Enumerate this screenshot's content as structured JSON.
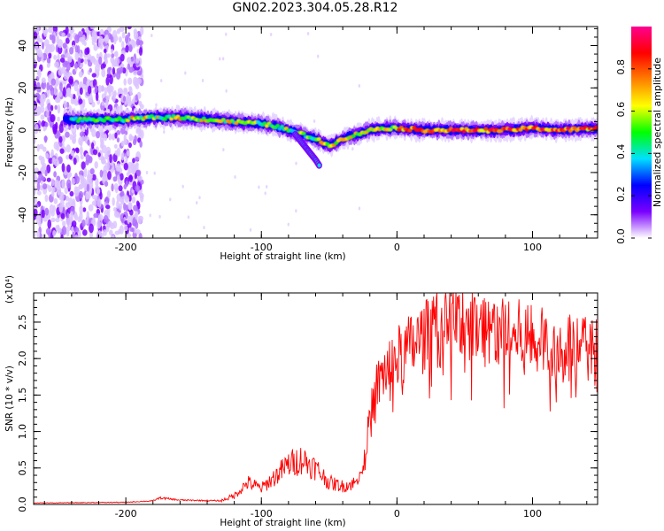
{
  "title": "GN02.2023.304.05.28.R12",
  "chart_data": [
    {
      "type": "heatmap",
      "title": "GN02.2023.304.05.28.R12",
      "xlabel": "Height of straight line (km)",
      "ylabel": "Frequency (Hz)",
      "xlim": [
        -268,
        148
      ],
      "ylim": [
        -51,
        49
      ],
      "x_ticks": [
        -200,
        -100,
        0,
        100
      ],
      "y_ticks": [
        -40,
        -20,
        0,
        20,
        40
      ],
      "colorbar": {
        "label": "Normalized spectral amplitude",
        "range": [
          0,
          1
        ],
        "ticks": [
          0.0,
          0.2,
          0.4,
          0.6,
          0.8
        ],
        "colors": [
          "#ffffff",
          "#7a00ff",
          "#0000ff",
          "#00e0ff",
          "#00ff00",
          "#ffff00",
          "#ff8000",
          "#ff0000",
          "#ff0090"
        ]
      },
      "ridge": {
        "x": [
          -240,
          -200,
          -180,
          -160,
          -140,
          -120,
          -100,
          -90,
          -80,
          -70,
          -60,
          -55,
          -50,
          -45,
          -40,
          -30,
          -20,
          -10,
          0,
          20,
          40,
          60,
          80,
          100,
          120,
          148
        ],
        "y": [
          5,
          5,
          6,
          6,
          5,
          4,
          3,
          2,
          0,
          -2,
          -4,
          -6,
          -7,
          -6,
          -4,
          -2,
          0,
          1,
          1,
          0,
          0,
          0,
          0,
          1,
          0,
          1
        ]
      },
      "branch": {
        "x": [
          -75,
          -70,
          -65,
          -60,
          -57
        ],
        "y": [
          -2,
          -6,
          -10,
          -14,
          -17
        ]
      }
    },
    {
      "type": "line",
      "xlabel": "Height of straight line (km)",
      "ylabel": "SNR (10 * v/v)",
      "yscale_label": "(x10⁴)",
      "xlim": [
        -268,
        148
      ],
      "ylim": [
        0,
        2.9
      ],
      "x_ticks": [
        -200,
        -100,
        0,
        100
      ],
      "y_ticks": [
        0.0,
        0.5,
        1.0,
        1.5,
        2.0,
        2.5
      ],
      "color": "#ff0000",
      "envelope": {
        "x": [
          -268,
          -200,
          -180,
          -175,
          -160,
          -130,
          -120,
          -110,
          -100,
          -90,
          -80,
          -70,
          -60,
          -50,
          -40,
          -30,
          -25,
          -20,
          -15,
          -10,
          0,
          10,
          20,
          30,
          40,
          50,
          60,
          80,
          100,
          120,
          140,
          148
        ],
        "y": [
          0.02,
          0.03,
          0.05,
          0.09,
          0.06,
          0.05,
          0.12,
          0.3,
          0.22,
          0.38,
          0.55,
          0.62,
          0.5,
          0.3,
          0.25,
          0.3,
          0.5,
          1.2,
          1.6,
          1.8,
          2.0,
          2.15,
          2.3,
          2.4,
          2.45,
          2.55,
          2.45,
          2.35,
          2.25,
          2.15,
          2.1,
          2.1
        ]
      }
    }
  ]
}
